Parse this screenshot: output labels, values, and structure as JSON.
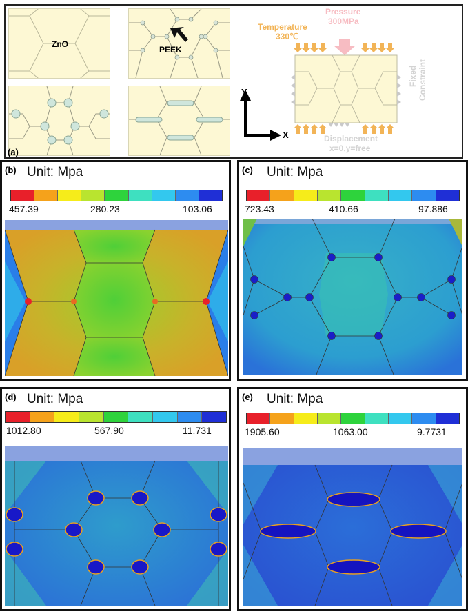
{
  "panel_a": {
    "label": "(a)",
    "zno_label": "ZnO",
    "peek_label": "PEEK",
    "temperature_label": "Temperature",
    "temperature_value": "330℃",
    "pressure_label": "Pressure",
    "pressure_value": "300MPa",
    "constraint_label_1": "Fixed",
    "constraint_label_2": "Constraint",
    "displacement_label": "Displacement",
    "displacement_value": "x=0,y=free",
    "axis_y": "Y",
    "axis_x": "X"
  },
  "panels": [
    {
      "label": "(b)",
      "unit": "Unit: Mpa",
      "max": "457.39",
      "mid": "280.23",
      "min": "103.06"
    },
    {
      "label": "(c)",
      "unit": "Unit: Mpa",
      "max": "723.43",
      "mid": "410.66",
      "min": "97.886"
    },
    {
      "label": "(d)",
      "unit": "Unit: Mpa",
      "max": "1012.80",
      "mid": "567.90",
      "min": "11.731"
    },
    {
      "label": "(e)",
      "unit": "Unit: Mpa",
      "max": "1905.60",
      "mid": "1063.00",
      "min": "9.7731"
    }
  ],
  "colors": {
    "scale": [
      "#e8202a",
      "#f5a21b",
      "#f6ec1a",
      "#b9e42f",
      "#2ed33c",
      "#3ee0c0",
      "#33c8ee",
      "#2d8cf0",
      "#1f2fd6"
    ],
    "zno_fill": "#fdf8d4",
    "peek_fill": "#cfe6dc",
    "arrow_orange": "#f2b457",
    "pressure_pink": "#f7bcc2"
  }
}
